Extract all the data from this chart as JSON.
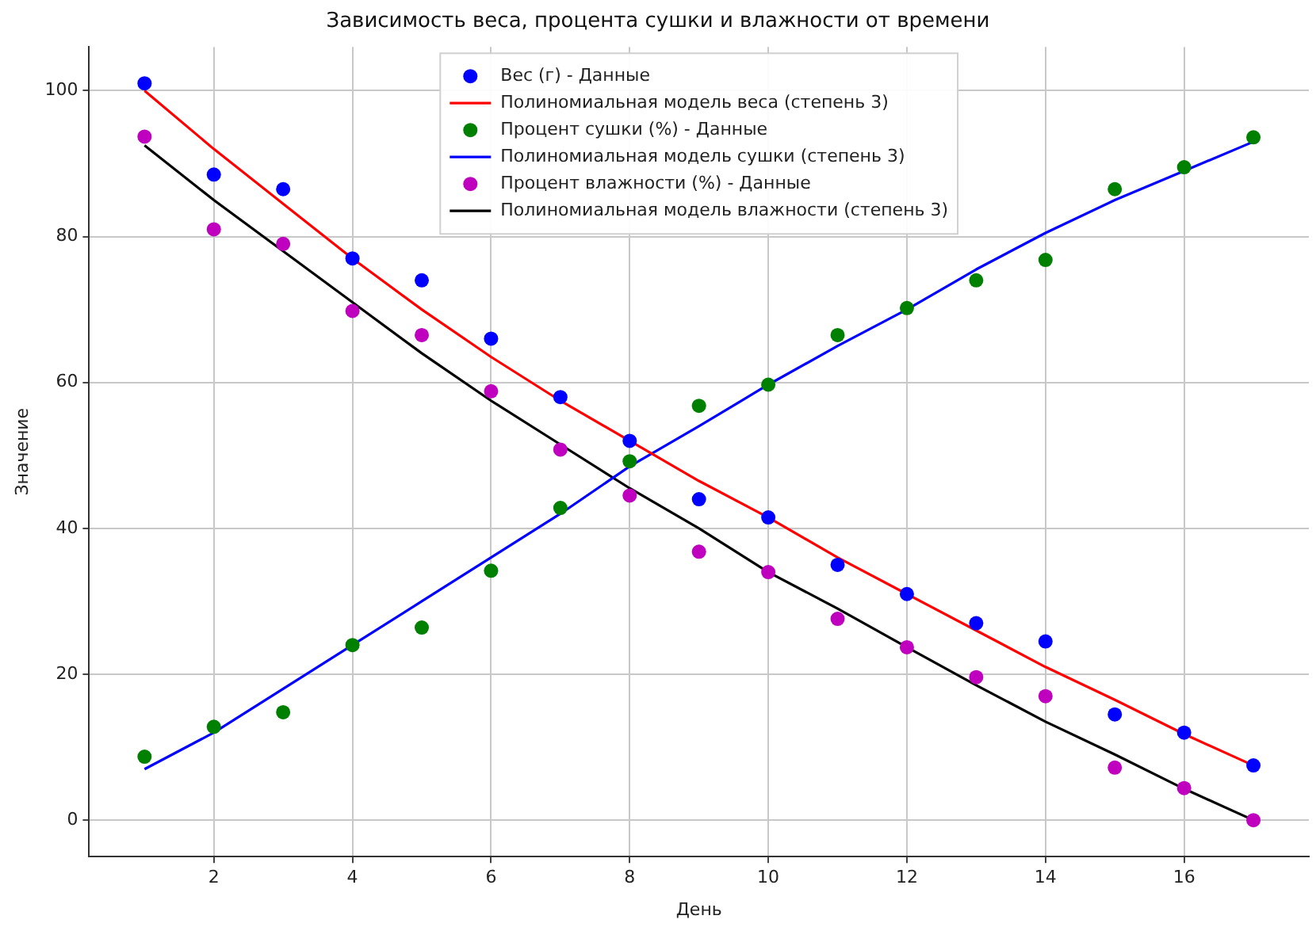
{
  "chart_data": {
    "type": "scatter",
    "title": "Зависимость веса, процента сушки и влажности от времени",
    "xlabel": "День",
    "ylabel": "Значение",
    "x": [
      1,
      2,
      3,
      4,
      5,
      6,
      7,
      8,
      9,
      10,
      11,
      12,
      13,
      14,
      15,
      16,
      17
    ],
    "xlim": [
      0.2,
      17.8
    ],
    "xticks": [
      2,
      4,
      6,
      8,
      10,
      12,
      14,
      16
    ],
    "ylim": [
      -5,
      106
    ],
    "yticks": [
      0,
      20,
      40,
      60,
      80,
      100
    ],
    "grid": true,
    "legend": "top",
    "series": [
      {
        "name": "Вес (г) - Данные",
        "marker": "circle",
        "color": "#0000ff",
        "values": [
          101,
          88.5,
          86.5,
          77,
          74,
          66,
          58,
          52,
          44,
          41.5,
          35,
          31,
          27,
          24.5,
          14.5,
          12,
          7.5
        ]
      },
      {
        "name": "Полиномиальная модель веса (степень 3)",
        "type": "line",
        "marker": "none",
        "color": "#ff0000",
        "values": [
          100,
          92,
          84.5,
          77,
          70,
          63.5,
          57.5,
          52,
          46.5,
          41.5,
          36,
          31,
          26,
          21,
          16.5,
          11.8,
          7.5
        ]
      },
      {
        "name": "Процент сушки (%) - Данные",
        "marker": "circle",
        "color": "#008000",
        "values": [
          8.7,
          12.8,
          14.8,
          24,
          26.4,
          34.2,
          42.8,
          49.2,
          56.8,
          59.7,
          66.5,
          70.2,
          74,
          76.8,
          86.5,
          89.5,
          93.6
        ]
      },
      {
        "name": "Полиномиальная модель сушки (степень 3)",
        "type": "line",
        "marker": "none",
        "color": "#0000ff",
        "values": [
          7,
          12,
          18,
          24,
          30,
          36,
          42,
          48.5,
          54,
          59.7,
          65,
          70,
          75.5,
          80.5,
          85,
          89,
          93
        ]
      },
      {
        "name": "Процент влажности (%) - Данные",
        "marker": "circle",
        "color": "#bf00bf",
        "values": [
          93.7,
          81,
          79,
          69.8,
          66.5,
          58.8,
          50.8,
          44.5,
          36.8,
          34,
          27.6,
          23.7,
          19.6,
          17,
          7.2,
          4.4,
          0
        ]
      },
      {
        "name": "Полиномиальная модель влажности (степень 3)",
        "type": "line",
        "marker": "none",
        "color": "#000000",
        "values": [
          92.5,
          85,
          78,
          71,
          64,
          57.5,
          51.5,
          45.5,
          40,
          34,
          29,
          23.7,
          18.5,
          13.5,
          9,
          4.3,
          0
        ]
      }
    ]
  }
}
